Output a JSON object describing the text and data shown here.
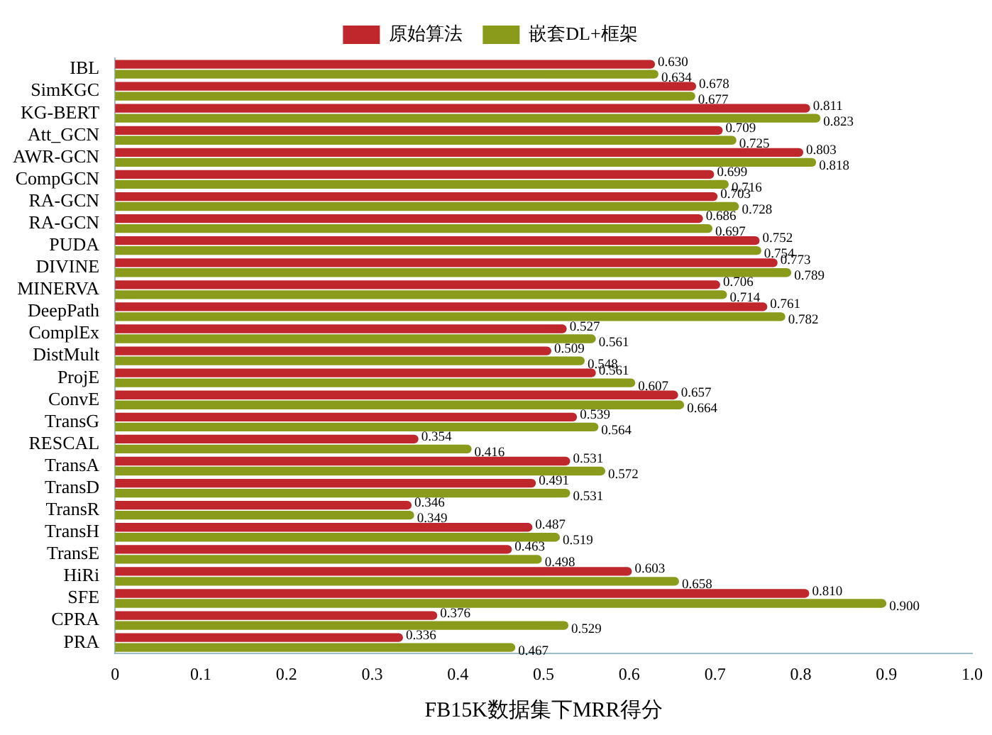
{
  "chart_data": {
    "type": "bar",
    "orientation": "horizontal",
    "xlabel": "FB15K数据集下MRR得分",
    "categories": [
      "IBL",
      "SimKGC",
      "KG-BERT",
      "Att_GCN",
      "AWR-GCN",
      "CompGCN",
      "RA-GCN",
      "RA-GCN",
      "PUDA",
      "DIVINE",
      "MINERVA",
      "DeepPath",
      "ComplEx",
      "DistMult",
      "ProjE",
      "ConvE",
      "TransG",
      "RESCAL",
      "TransA",
      "TransD",
      "TransR",
      "TransH",
      "TransE",
      "HiRi",
      "SFE",
      "CPRA",
      "PRA"
    ],
    "series": [
      {
        "name": "原始算法",
        "color": "#c0272d",
        "values": [
          0.63,
          0.678,
          0.811,
          0.709,
          0.803,
          0.699,
          0.703,
          0.686,
          0.752,
          0.773,
          0.706,
          0.761,
          0.527,
          0.509,
          0.561,
          0.657,
          0.539,
          0.354,
          0.531,
          0.491,
          0.346,
          0.487,
          0.463,
          0.603,
          0.81,
          0.376,
          0.336
        ],
        "value_labels": [
          "0.630",
          "0.678",
          "0.811",
          "0.709",
          "0.803",
          "0.699",
          "0.703",
          "0.686",
          "0.752",
          "0.773",
          "0.706",
          "0.761",
          "0.527",
          "0.509",
          "0.561",
          "0.657",
          "0.539",
          "0.354",
          "0.531",
          "0.491",
          "0.346",
          "0.487",
          "0.463",
          "0.603",
          "0.810",
          "0.376",
          "0.336"
        ]
      },
      {
        "name": "嵌套DL+框架",
        "color": "#8a9a1b",
        "values": [
          0.634,
          0.677,
          0.823,
          0.725,
          0.818,
          0.716,
          0.728,
          0.697,
          0.754,
          0.789,
          0.714,
          0.782,
          0.561,
          0.548,
          0.607,
          0.664,
          0.564,
          0.416,
          0.572,
          0.531,
          0.349,
          0.519,
          0.498,
          0.658,
          0.9,
          0.529,
          0.467
        ],
        "value_labels": [
          "0.634",
          "0.677",
          "0.823",
          "0.725",
          "0.818",
          "0.716",
          "0.728",
          "0.697",
          "0.754",
          "0.789",
          "0.714",
          "0.782",
          "0.561",
          "0.548",
          "0.607",
          "0.664",
          "0.564",
          "0.416",
          "0.572",
          "0.531",
          "0.349",
          "0.519",
          "0.498",
          "0.658",
          "0.900",
          "0.529",
          "0.467"
        ]
      }
    ],
    "xlim": [
      0,
      1
    ],
    "xticks": [
      0,
      0.1,
      0.2,
      0.3,
      0.4,
      0.5,
      0.6,
      0.7,
      0.8,
      0.9,
      {
        "value": 1,
        "label": "1.0"
      }
    ],
    "grid": false,
    "legend": "top"
  }
}
